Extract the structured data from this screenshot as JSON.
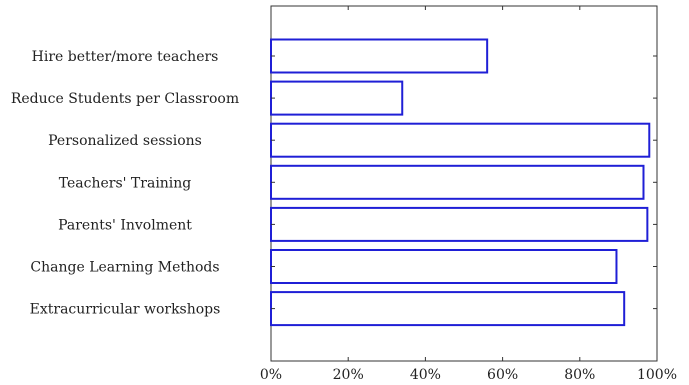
{
  "chart_data": {
    "type": "bar",
    "orientation": "horizontal",
    "categories": [
      "Hire better/more teachers",
      "Reduce Students per Classroom",
      "Personalized sessions",
      "Teachers' Training",
      "Parents' Involment",
      "Change Learning Methods",
      "Extracurricular workshops"
    ],
    "values": [
      56,
      34,
      98,
      96.5,
      97.5,
      89.5,
      91.5
    ],
    "xlim": [
      0,
      100
    ],
    "x_ticks": [
      0,
      20,
      40,
      60,
      80,
      100
    ],
    "x_tick_labels": [
      "0%",
      "20%",
      "40%",
      "60%",
      "80%",
      "100%"
    ],
    "bar_edge_color": "#1f1fd6",
    "bar_fill_color": "#ffffff",
    "grid": false,
    "title": "",
    "xlabel": "",
    "ylabel": ""
  }
}
